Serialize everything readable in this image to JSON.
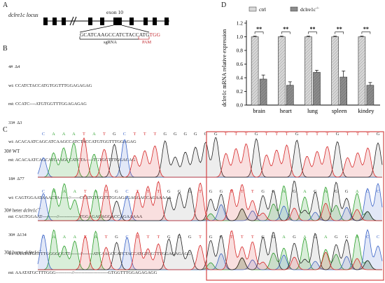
{
  "panelA": {
    "letter": "A",
    "locus_label": "dclre1c locus",
    "exon_label": "exon 10",
    "sgrna_seq": "GCATCAAGCCATCTACCATG",
    "pam_seq": "TGG",
    "sgrna_label": "sgRNA",
    "pam_label": "PAM"
  },
  "panelB": {
    "letter": "B",
    "lines": [
      {
        "text": "4#  Δ4"
      },
      {
        "text": "wt: CCATCTACCATGTGGTTTGGAGAGAG"
      },
      {
        "text": "mt: CCATC----ATGTGGTTTGGAGAGAG"
      },
      {
        "text": "33#  Δ3"
      },
      {
        "text": "wt: ACACAATCAGCATCAAGCCATCTACCATGTGGTTTGGAGAG"
      },
      {
        "text": "mt: ACACAATCAGCATCAAGCCATCTA-----TGTGGTTTGGAGAG"
      },
      {
        "text": "18#  Δ77"
      },
      {
        "text": "wt: CAGTGGAATAAACTA------//------CCATGTGGTTTGGAGAGAGGACCAGAAAAA"
      },
      {
        "text": "mt: CAGTGGAAT----------//--------------TGGAGAGAGGACCAGAAAAA"
      },
      {
        "text": "30#  Δ134"
      },
      {
        "text": "wt: AAATATGCTTTGGGGGGTT-------//-------ATCAAGCCATCTACCATGTGGTTTGGAGAGAGG"
      },
      {
        "text": "mt: AAATATGCTTTGGG-----------//-----------------------GTGGTTTGGAGAGAGG"
      }
    ]
  },
  "panelC": {
    "letter": "C",
    "tracks": [
      {
        "label_prefix": "30# WT",
        "label_italic": "",
        "label_suffix": "",
        "bases": "CAAATATGCTTTGGGGGGTTTGTTTGTTTGTTTG"
      },
      {
        "label_prefix": "30# heter ",
        "label_italic": "dclre1c",
        "label_suffix": "+/-",
        "bases": "CAAATATGCTTTGGGTGGTTTGGAGAGAGGACC"
      },
      {
        "label_prefix": "30# homo ",
        "label_italic": "dclre1c",
        "label_suffix": "-/-",
        "bases": "CAAATATGCTTTGGGTGGTTTGGAGAGAGGACC"
      }
    ]
  },
  "panelD": {
    "letter": "D",
    "chart_data": {
      "type": "bar",
      "categories": [
        "brain",
        "heart",
        "lung",
        "spleen",
        "kindey"
      ],
      "series": [
        {
          "name": "ctrl",
          "values": [
            1.0,
            1.0,
            1.0,
            1.0,
            1.0
          ],
          "errors": [
            0.01,
            0.01,
            0.01,
            0.01,
            0.01
          ]
        },
        {
          "name": "dclre1c-/-",
          "values": [
            0.38,
            0.29,
            0.48,
            0.41,
            0.29
          ],
          "errors": [
            0.06,
            0.05,
            0.03,
            0.09,
            0.04
          ]
        }
      ],
      "significance": [
        "**",
        "**",
        "**",
        "**",
        "**"
      ],
      "ylabel": "dclre1c mRNA relative expression",
      "ylim": [
        0.0,
        1.2
      ],
      "yticks": [
        "0.0",
        "0.2",
        "0.4",
        "0.6",
        "0.8",
        "1.0",
        "1.2"
      ],
      "legend": {
        "position": "top",
        "ctrl": "ctrl",
        "ko_prefix": "dclre1c",
        "ko_suffix": "-/-"
      },
      "colors": {
        "ctrl": "#d8d8d8",
        "ko": "#8c8c8c"
      }
    }
  }
}
